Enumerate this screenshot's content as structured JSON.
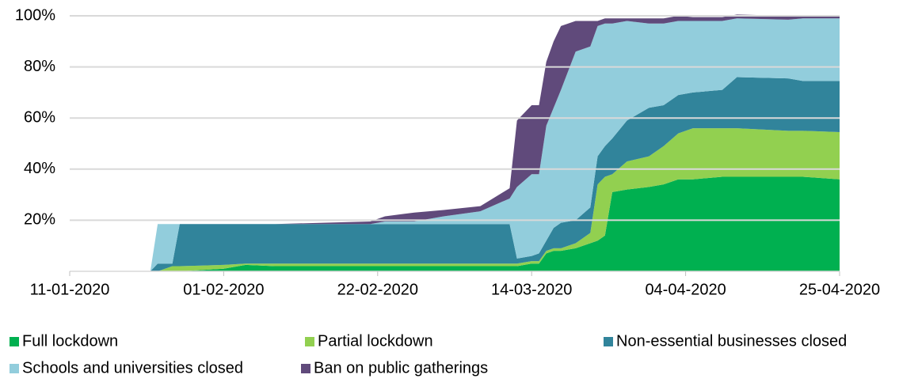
{
  "chart_data": {
    "type": "stacked-area",
    "x": [
      "2020-01-11",
      "2020-01-22",
      "2020-01-23",
      "2020-01-25",
      "2020-01-26",
      "2020-02-01",
      "2020-02-04",
      "2020-02-08",
      "2020-02-21",
      "2020-02-23",
      "2020-02-27",
      "2020-03-02",
      "2020-03-07",
      "2020-03-11",
      "2020-03-12",
      "2020-03-14",
      "2020-03-15",
      "2020-03-16",
      "2020-03-17",
      "2020-03-18",
      "2020-03-20",
      "2020-03-22",
      "2020-03-23",
      "2020-03-24",
      "2020-03-25",
      "2020-03-27",
      "2020-03-30",
      "2020-04-01",
      "2020-04-03",
      "2020-04-05",
      "2020-04-09",
      "2020-04-11",
      "2020-04-18",
      "2020-04-20",
      "2020-04-25"
    ],
    "series": [
      {
        "name": "Full lockdown",
        "color": "#00b050",
        "values": [
          0,
          0,
          0,
          0,
          0,
          1,
          2.5,
          2,
          2,
          2,
          2,
          2,
          2,
          2,
          2,
          3,
          3,
          7,
          8,
          8,
          9,
          11,
          12,
          14,
          31,
          32,
          33,
          34,
          36,
          36,
          37,
          37,
          37,
          37,
          36
        ]
      },
      {
        "name": "Partial lockdown",
        "color": "#92d050",
        "values": [
          0,
          0,
          0,
          2,
          2,
          1.5,
          0.5,
          1,
          1,
          1,
          1,
          1,
          1,
          1,
          1,
          1,
          1,
          1,
          1,
          1,
          2,
          4,
          22,
          23,
          7,
          11,
          12,
          15,
          18,
          20,
          19,
          19,
          18,
          18,
          18.5
        ]
      },
      {
        "name": "Non-essential businesses closed",
        "color": "#31849b",
        "values": [
          0,
          0,
          3,
          1,
          16.5,
          16,
          15.5,
          15.5,
          15.5,
          15.5,
          15.5,
          15.5,
          15.5,
          15.5,
          2,
          2,
          3,
          4,
          8,
          10,
          9,
          10,
          11,
          12,
          14,
          16,
          19,
          16,
          15,
          14,
          15,
          20,
          20.5,
          19.5,
          20
        ]
      },
      {
        "name": "Schools and universities closed",
        "color": "#92cddc",
        "values": [
          0,
          0,
          15.5,
          15.5,
          0,
          0,
          0,
          0,
          0,
          1,
          1,
          3,
          5,
          10,
          28,
          32,
          31,
          45,
          47,
          52,
          66,
          63,
          51,
          48,
          45,
          39,
          33,
          32,
          29,
          28,
          27,
          23,
          23,
          24.5,
          24.5
        ]
      },
      {
        "name": "Ban on public gatherings",
        "color": "#604a7b",
        "values": [
          0,
          0,
          0,
          0,
          0,
          0,
          0,
          0,
          1,
          2,
          3.5,
          2.5,
          2,
          4,
          26,
          27,
          27,
          25,
          26,
          25,
          12,
          10,
          2,
          2,
          2,
          1,
          2,
          2,
          2,
          1.5,
          1.5,
          1.5,
          1.5,
          1,
          1
        ]
      }
    ],
    "xlim": [
      "2020-01-11",
      "2020-04-25"
    ],
    "xticks": [
      {
        "value": "2020-01-11",
        "label": "11-01-2020"
      },
      {
        "value": "2020-02-01",
        "label": "01-02-2020"
      },
      {
        "value": "2020-02-22",
        "label": "22-02-2020"
      },
      {
        "value": "2020-03-14",
        "label": "14-03-2020"
      },
      {
        "value": "2020-04-04",
        "label": "04-04-2020"
      },
      {
        "value": "2020-04-25",
        "label": "25-04-2020"
      }
    ],
    "ylim": [
      0,
      100
    ],
    "yticks": [
      {
        "value": 20,
        "label": "20%"
      },
      {
        "value": 40,
        "label": "40%"
      },
      {
        "value": 60,
        "label": "60%"
      },
      {
        "value": 80,
        "label": "80%"
      },
      {
        "value": 100,
        "label": "100%"
      }
    ],
    "grid": true
  }
}
